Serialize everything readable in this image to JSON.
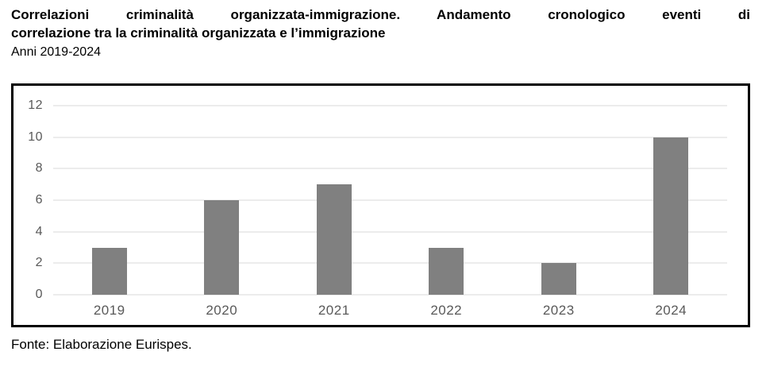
{
  "title": {
    "line1": "Correlazioni criminalità organizzata-immigrazione. Andamento cronologico eventi di",
    "line2": "correlazione tra la criminalità organizzata e l’immigrazione",
    "period": "Anni 2019-2024"
  },
  "source": "Fonte: Elaborazione Eurispes.",
  "chart_data": {
    "type": "bar",
    "categories": [
      "2019",
      "2020",
      "2021",
      "2022",
      "2023",
      "2024"
    ],
    "values": [
      3,
      6,
      7,
      3,
      2,
      10
    ],
    "title": "Correlazioni criminalità organizzata-immigrazione. Andamento cronologico eventi di correlazione tra la criminalità organizzata e l’immigrazione",
    "subtitle": "Anni 2019-2024",
    "xlabel": "",
    "ylabel": "",
    "ylim": [
      0,
      12
    ],
    "ytick_step": 2,
    "grid": true,
    "legend": false,
    "colors": {
      "bar": "#808080",
      "gridline": "#d9d9d9",
      "tick_label": "#595959",
      "frame_border": "#000000",
      "background": "#ffffff"
    }
  }
}
